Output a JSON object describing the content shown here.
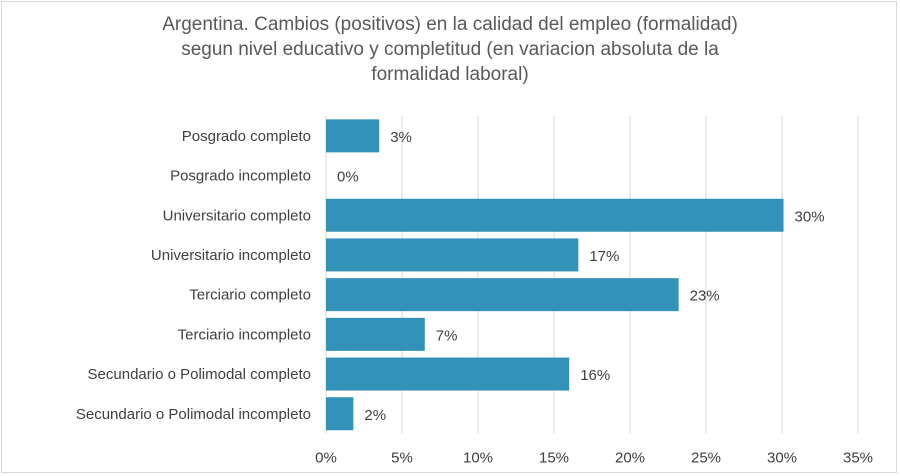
{
  "chart_data": {
    "type": "bar",
    "orientation": "horizontal",
    "title_lines": [
      "Argentina. Cambios (positivos) en la calidad del empleo (formalidad)",
      "segun nivel educativo y completitud (en variacion absoluta de la",
      "formalidad laboral)"
    ],
    "categories": [
      "Posgrado completo",
      "Posgrado incompleto",
      "Universitario completo",
      "Universitario incompleto",
      "Terciario completo",
      "Terciario incompleto",
      "Secundario o Polimodal completo",
      "Secundario o Polimodal incompleto"
    ],
    "values": [
      3.5,
      0,
      30.1,
      16.6,
      23.2,
      6.5,
      16.0,
      1.8
    ],
    "data_labels": [
      "3%",
      "0%",
      "30%",
      "17%",
      "23%",
      "7%",
      "16%",
      "2%"
    ],
    "xlim": [
      0,
      35
    ],
    "x_ticks": [
      "0%",
      "5%",
      "10%",
      "15%",
      "20%",
      "25%",
      "30%",
      "35%"
    ],
    "grid": "vertical",
    "legend": "none",
    "bar_color": "#3392b8"
  }
}
